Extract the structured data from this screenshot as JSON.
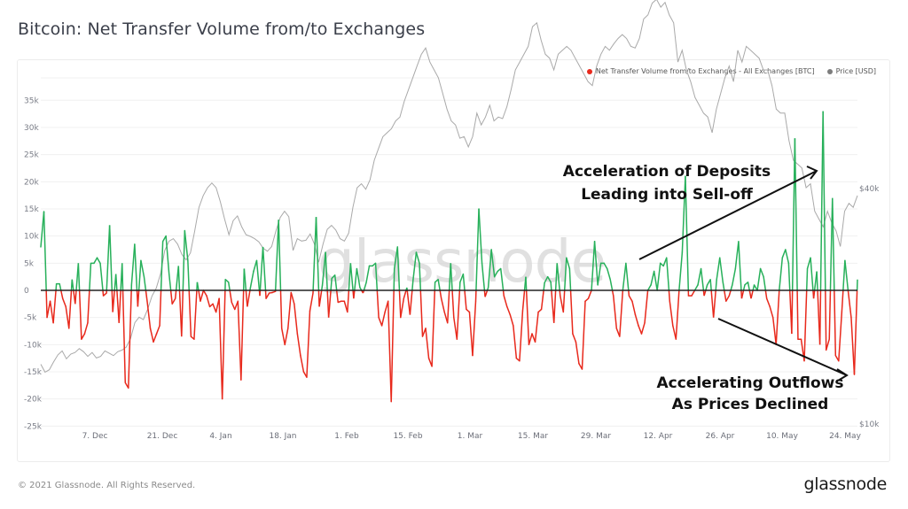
{
  "page": {
    "title": "Bitcoin: Net Transfer Volume from/to Exchanges",
    "footer_copyright": "© 2021 Glassnode. All Rights Reserved.",
    "footer_logo": "glassnode",
    "watermark": "glassnode"
  },
  "legend": {
    "items": [
      {
        "label": "Net Transfer Volume from/to Exchanges - All Exchanges [BTC]",
        "color": "#e8291c"
      },
      {
        "label": "Price [USD]",
        "color": "#7d7d7d"
      }
    ]
  },
  "annotations": {
    "deposits_line1": "Acceleration of Deposits",
    "deposits_line2": "Leading into Sell-off",
    "outflows_line1": "Accelerating Outflows",
    "outflows_line2": "As Prices Declined"
  },
  "colors": {
    "positive": "#27b05a",
    "negative": "#e8291c",
    "price": "#a9a9a9",
    "zero_line": "#222222",
    "grid": "#f0f0f0"
  },
  "chart_data": {
    "type": "line",
    "title": "Bitcoin: Net Transfer Volume from/to Exchanges",
    "xlabel": "",
    "ylabel": "",
    "grid": true,
    "legend_position": "top-right",
    "y_ticks": [
      "35k",
      "30k",
      "25k",
      "20k",
      "15k",
      "10k",
      "5k",
      "0",
      "-5k",
      "-10k",
      "-15k",
      "-20k",
      "-25k"
    ],
    "y_tick_values": [
      35000,
      30000,
      25000,
      20000,
      15000,
      10000,
      5000,
      0,
      -5000,
      -10000,
      -15000,
      -20000,
      -25000
    ],
    "ylim": [
      -25000,
      35000
    ],
    "y2_ticks": [
      "$40k",
      "$10k"
    ],
    "y2_tick_values": [
      40000,
      10000
    ],
    "x_ticks": [
      "7. Dec",
      "21. Dec",
      "4. Jan",
      "18. Jan",
      "1. Feb",
      "15. Feb",
      "1. Mar",
      "15. Mar",
      "29. Mar",
      "12. Apr",
      "26. Apr",
      "10. May",
      "24. May"
    ],
    "x_range": [
      "2020-11-23",
      "2021-05-27"
    ],
    "series": [
      {
        "name": "Net Transfer Volume from/to Exchanges - All Exchanges [BTC]",
        "axis": "left",
        "values": [
          8000,
          14500,
          -5000,
          -2000,
          -6000,
          1200,
          1200,
          -1500,
          -3000,
          -7000,
          2000,
          -2500,
          5000,
          -9000,
          -8000,
          -6000,
          5000,
          5000,
          6000,
          5000,
          -1000,
          -500,
          12000,
          -4000,
          3000,
          -6000,
          5000,
          -17000,
          -18000,
          1000,
          8500,
          -3000,
          5500,
          2500,
          -2000,
          -7000,
          -9500,
          -8000,
          -6500,
          9000,
          10000,
          3000,
          -2500,
          -1500,
          4500,
          -8500,
          11000,
          5500,
          -8500,
          -9000,
          1500,
          -2000,
          -0.1,
          -1000,
          -3000,
          -2500,
          -4000,
          -1500,
          -20000,
          2000,
          1500,
          -2200,
          -3500,
          -2000,
          -16500,
          4000,
          -3000,
          500,
          3500,
          5500,
          -1000,
          8000,
          -1500,
          -500,
          -400,
          -200,
          13000,
          -7000,
          -10000,
          -7000,
          -400,
          -2500,
          -8000,
          -12000,
          -15000,
          -16000,
          -3800,
          -500,
          13500,
          -3000,
          1000,
          7000,
          -5000,
          2200,
          2800,
          -2200,
          -2000,
          -2000,
          -4000,
          5000,
          -1500,
          4000,
          500,
          -500,
          1400,
          4500,
          4500,
          5000,
          -5000,
          -6500,
          -4000,
          -2000,
          -20500,
          4000,
          8000,
          -5000,
          -1500,
          500,
          -4500,
          2000,
          7000,
          5000,
          -8500,
          -7000,
          -12500,
          -14000,
          1500,
          2000,
          -1500,
          -4000,
          -6000,
          5000,
          -5000,
          -9000,
          1500,
          3000,
          -3500,
          -4000,
          -12000,
          -2000,
          15000,
          5000,
          -1200,
          500,
          7500,
          2500,
          3500,
          4000,
          -1000,
          -3000,
          -4500,
          -6500,
          -12500,
          -13000,
          -3800,
          2500,
          -10000,
          -8000,
          -9500,
          -4000,
          -3500,
          1400,
          2500,
          1500,
          -6000,
          5000,
          -1000,
          -4000,
          6000,
          4000,
          -8000,
          -9500,
          -13500,
          -14500,
          -2000,
          -1500,
          0,
          9000,
          1000,
          5000,
          5000,
          4000,
          2000,
          -1000,
          -7000,
          -8500,
          0,
          5000,
          -1000,
          -2000,
          -4500,
          -6500,
          -8000,
          -6000,
          0,
          1000,
          3500,
          0,
          5000,
          4500,
          6000,
          -2000,
          -6500,
          -9000,
          0,
          7000,
          21000,
          -1000,
          -1000,
          0,
          1000,
          4000,
          -1000,
          1000,
          2000,
          -5000,
          2000,
          6000,
          1500,
          -2000,
          -1000,
          1000,
          4000,
          9000,
          -1500,
          1000,
          1500,
          -1500,
          1000,
          0,
          4000,
          2500,
          -1500,
          -3000,
          -5000,
          -10000,
          0,
          6000,
          7500,
          5000,
          -8000,
          28000,
          -9000,
          -9000,
          -13000,
          4000,
          6000,
          -1500,
          3500,
          -10000,
          33000,
          -11000,
          -9000,
          17000,
          -12000,
          -13000,
          -4000,
          5500,
          0,
          -5000,
          -15500,
          2000
        ],
        "color_positive": "#27b05a",
        "color_negative": "#e8291c"
      },
      {
        "name": "Price [USD]",
        "axis": "right",
        "values": [
          17500,
          16500,
          16800,
          17800,
          18700,
          19200,
          18200,
          18800,
          19000,
          19500,
          19100,
          18500,
          19000,
          18300,
          18500,
          19200,
          18900,
          18600,
          19100,
          19300,
          19700,
          20800,
          22800,
          23500,
          23200,
          24500,
          26200,
          27200,
          29000,
          32000,
          33200,
          33500,
          32800,
          31500,
          30800,
          31700,
          34500,
          37500,
          39000,
          40000,
          40600,
          40000,
          38200,
          36000,
          34000,
          35800,
          36400,
          35000,
          34000,
          33800,
          33500,
          33100,
          32300,
          31900,
          32500,
          34500,
          36200,
          37000,
          36300,
          32000,
          33500,
          33200,
          33300,
          34100,
          32800,
          30500,
          32800,
          34700,
          35200,
          34600,
          33500,
          33200,
          34200,
          37500,
          40000,
          40500,
          39800,
          41000,
          43500,
          45000,
          46500,
          47000,
          47500,
          48500,
          49000,
          51000,
          52500,
          54000,
          55500,
          57000,
          57800,
          56000,
          55000,
          54000,
          52000,
          50000,
          48500,
          48000,
          46300,
          46500,
          45200,
          46500,
          49500,
          48000,
          49000,
          50500,
          48500,
          49000,
          48800,
          50300,
          52500,
          55000,
          56000,
          57000,
          58000,
          60500,
          61000,
          58800,
          57000,
          56500,
          55000,
          57000,
          57500,
          58000,
          57500,
          56500,
          55500,
          54500,
          53500,
          53000,
          55500,
          57000,
          58000,
          57500,
          58300,
          59000,
          59500,
          59000,
          58000,
          57800,
          59000,
          61500,
          62000,
          63500,
          64000,
          63000,
          63600,
          62000,
          61000,
          56000,
          57500,
          55000,
          53500,
          51500,
          50500,
          49500,
          49000,
          47000,
          50000,
          52000,
          54000,
          55500,
          53500,
          57500,
          56000,
          58000,
          57500,
          57000,
          56500,
          55000,
          55000,
          53000,
          50000,
          49500,
          49500,
          46000,
          43500,
          43000,
          42500,
          40000,
          40500,
          37000,
          36000,
          35000,
          37000,
          35500,
          34500,
          32500,
          37000,
          38000,
          37500,
          39000
        ]
      }
    ]
  }
}
